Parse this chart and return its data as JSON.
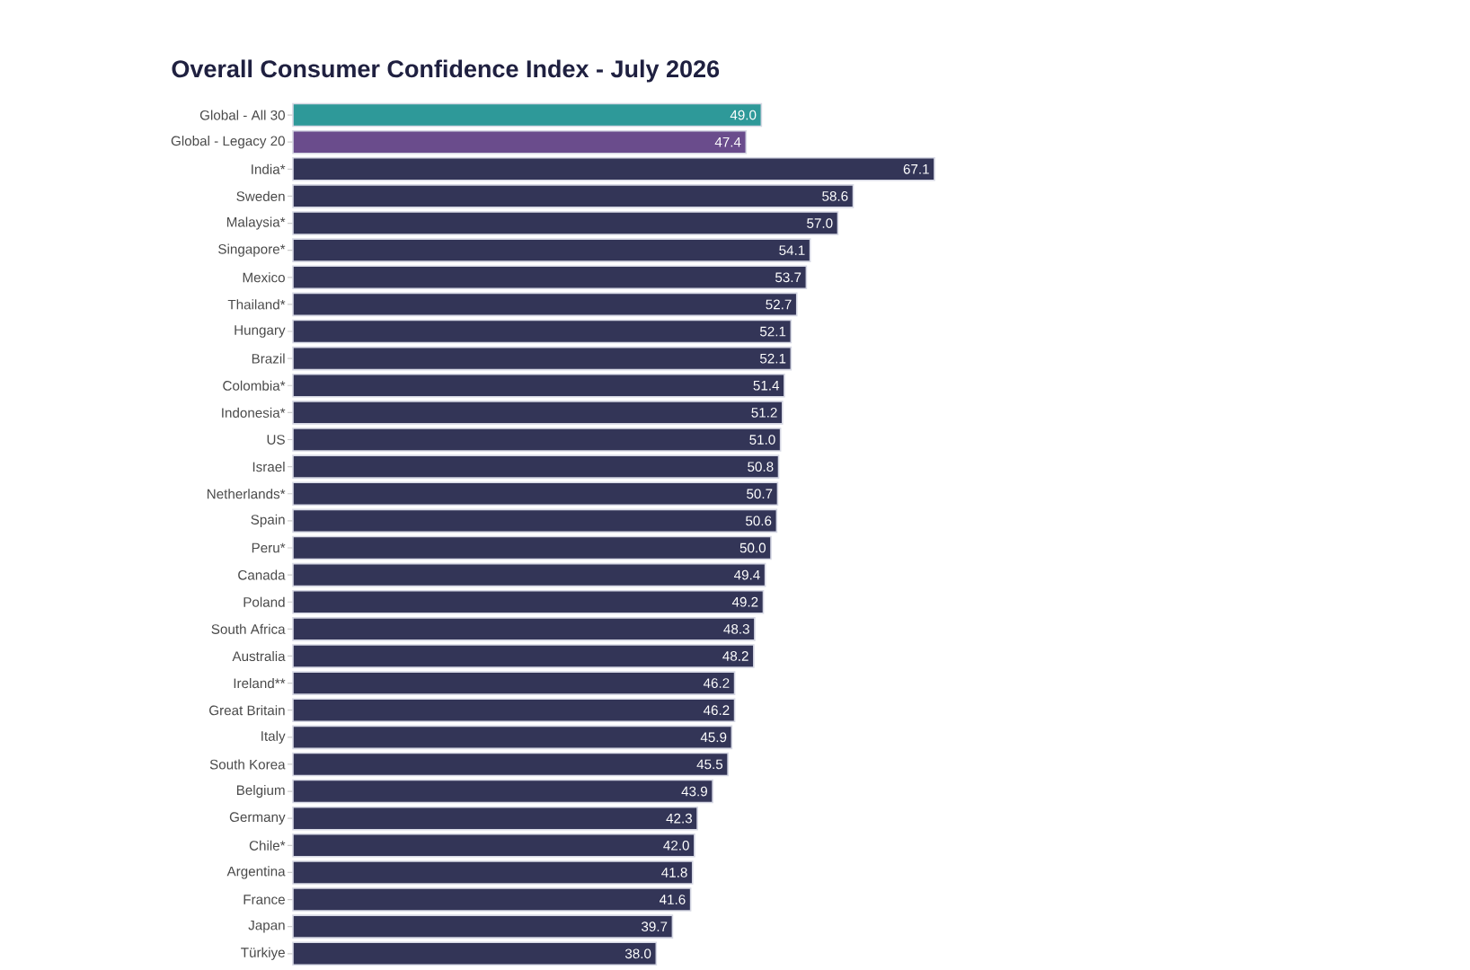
{
  "chart_data": {
    "type": "bar",
    "orientation": "horizontal",
    "title": "Overall Consumer Confidence Index - July 2026",
    "categories": [
      "Global - All 30",
      "Global - Legacy 20",
      "India*",
      "Sweden",
      "Malaysia*",
      "Singapore*",
      "Mexico",
      "Thailand*",
      "Hungary",
      "Brazil",
      "Colombia*",
      "Indonesia*",
      "US",
      "Israel",
      "Netherlands*",
      "Spain",
      "Peru*",
      "Canada",
      "Poland",
      "South Africa",
      "Australia",
      "Ireland**",
      "Great Britain",
      "Italy",
      "South Korea",
      "Belgium",
      "Germany",
      "Chile*",
      "Argentina",
      "France",
      "Japan",
      "Türkiye"
    ],
    "values": [
      49.0,
      47.4,
      67.1,
      58.6,
      57.0,
      54.1,
      53.7,
      52.7,
      52.1,
      52.1,
      51.4,
      51.2,
      51.0,
      50.8,
      50.7,
      50.6,
      50.0,
      49.4,
      49.2,
      48.3,
      48.2,
      46.2,
      46.2,
      45.9,
      45.5,
      43.9,
      42.3,
      42.0,
      41.8,
      41.6,
      39.7,
      38.0
    ],
    "value_labels": [
      "49.0",
      "47.4",
      "67.1",
      "58.6",
      "57.0",
      "54.1",
      "53.7",
      "52.7",
      "52.1",
      "52.1",
      "51.4",
      "51.2",
      "51.0",
      "50.8",
      "50.7",
      "50.6",
      "50.0",
      "49.4",
      "49.2",
      "48.3",
      "48.2",
      "46.2",
      "46.2",
      "45.9",
      "45.5",
      "43.9",
      "42.3",
      "42.0",
      "41.8",
      "41.6",
      "39.7",
      "38.0"
    ],
    "colors": [
      "#2e9999",
      "#6a4c8c",
      "#333557",
      "#333557",
      "#333557",
      "#333557",
      "#333557",
      "#333557",
      "#333557",
      "#333557",
      "#333557",
      "#333557",
      "#333557",
      "#333557",
      "#333557",
      "#333557",
      "#333557",
      "#333557",
      "#333557",
      "#333557",
      "#333557",
      "#333557",
      "#333557",
      "#333557",
      "#333557",
      "#333557",
      "#333557",
      "#333557",
      "#333557",
      "#333557",
      "#333557",
      "#333557"
    ]
  }
}
